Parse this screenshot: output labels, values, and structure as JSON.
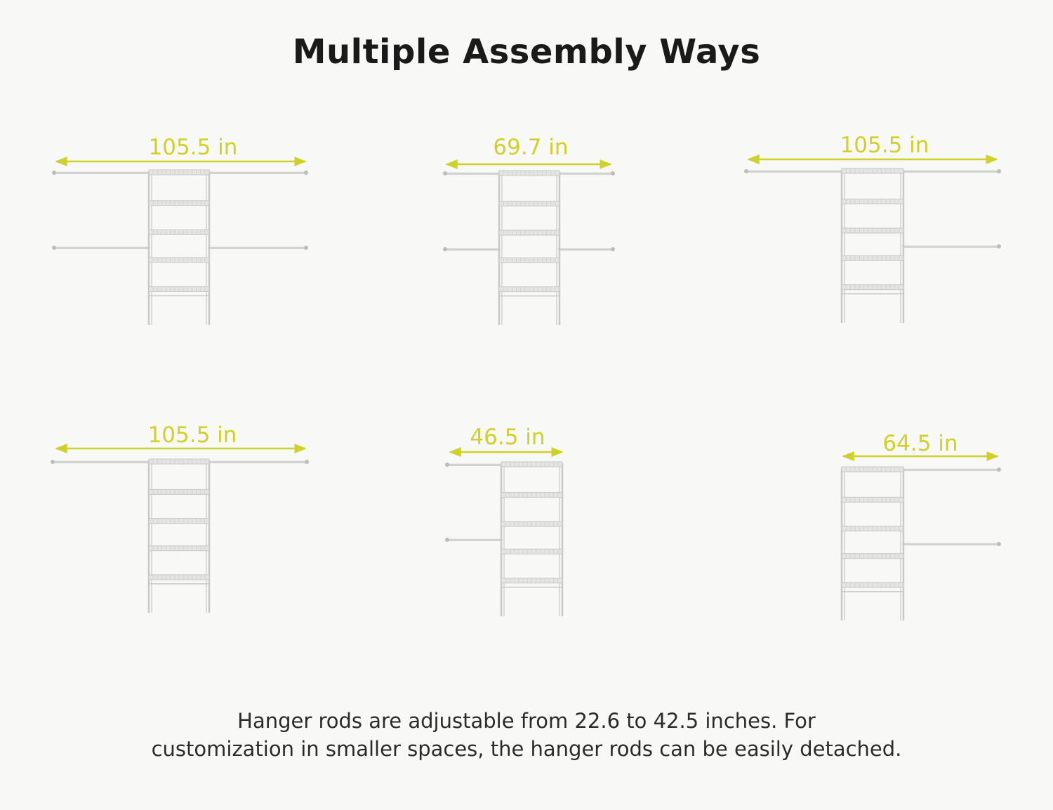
{
  "title": "Multiple Assembly Ways",
  "configs": [
    {
      "label": "105.5 in",
      "rods": "left-top,left-mid,right-top,right-mid"
    },
    {
      "label": "69.7 in",
      "rods": "left-top,left-mid,right-top,right-mid"
    },
    {
      "label": "105.5 in",
      "rods": "left-top,right-top,right-mid"
    },
    {
      "label": "105.5 in",
      "rods": "left-top,right-top"
    },
    {
      "label": "46.5 in",
      "rods": "left-top,left-mid"
    },
    {
      "label": "64.5 in",
      "rods": "right-top,right-mid"
    }
  ],
  "caption": {
    "line1": "Hanger rods are adjustable from 22.6 to 42.5 inches. For",
    "line2": "customization in smaller spaces, the hanger rods can be easily detached."
  },
  "colors": {
    "accent": "#cfd12a",
    "frame": "#c8c8c8",
    "rod": "#d2d2d2",
    "background": "#f8f8f6"
  }
}
